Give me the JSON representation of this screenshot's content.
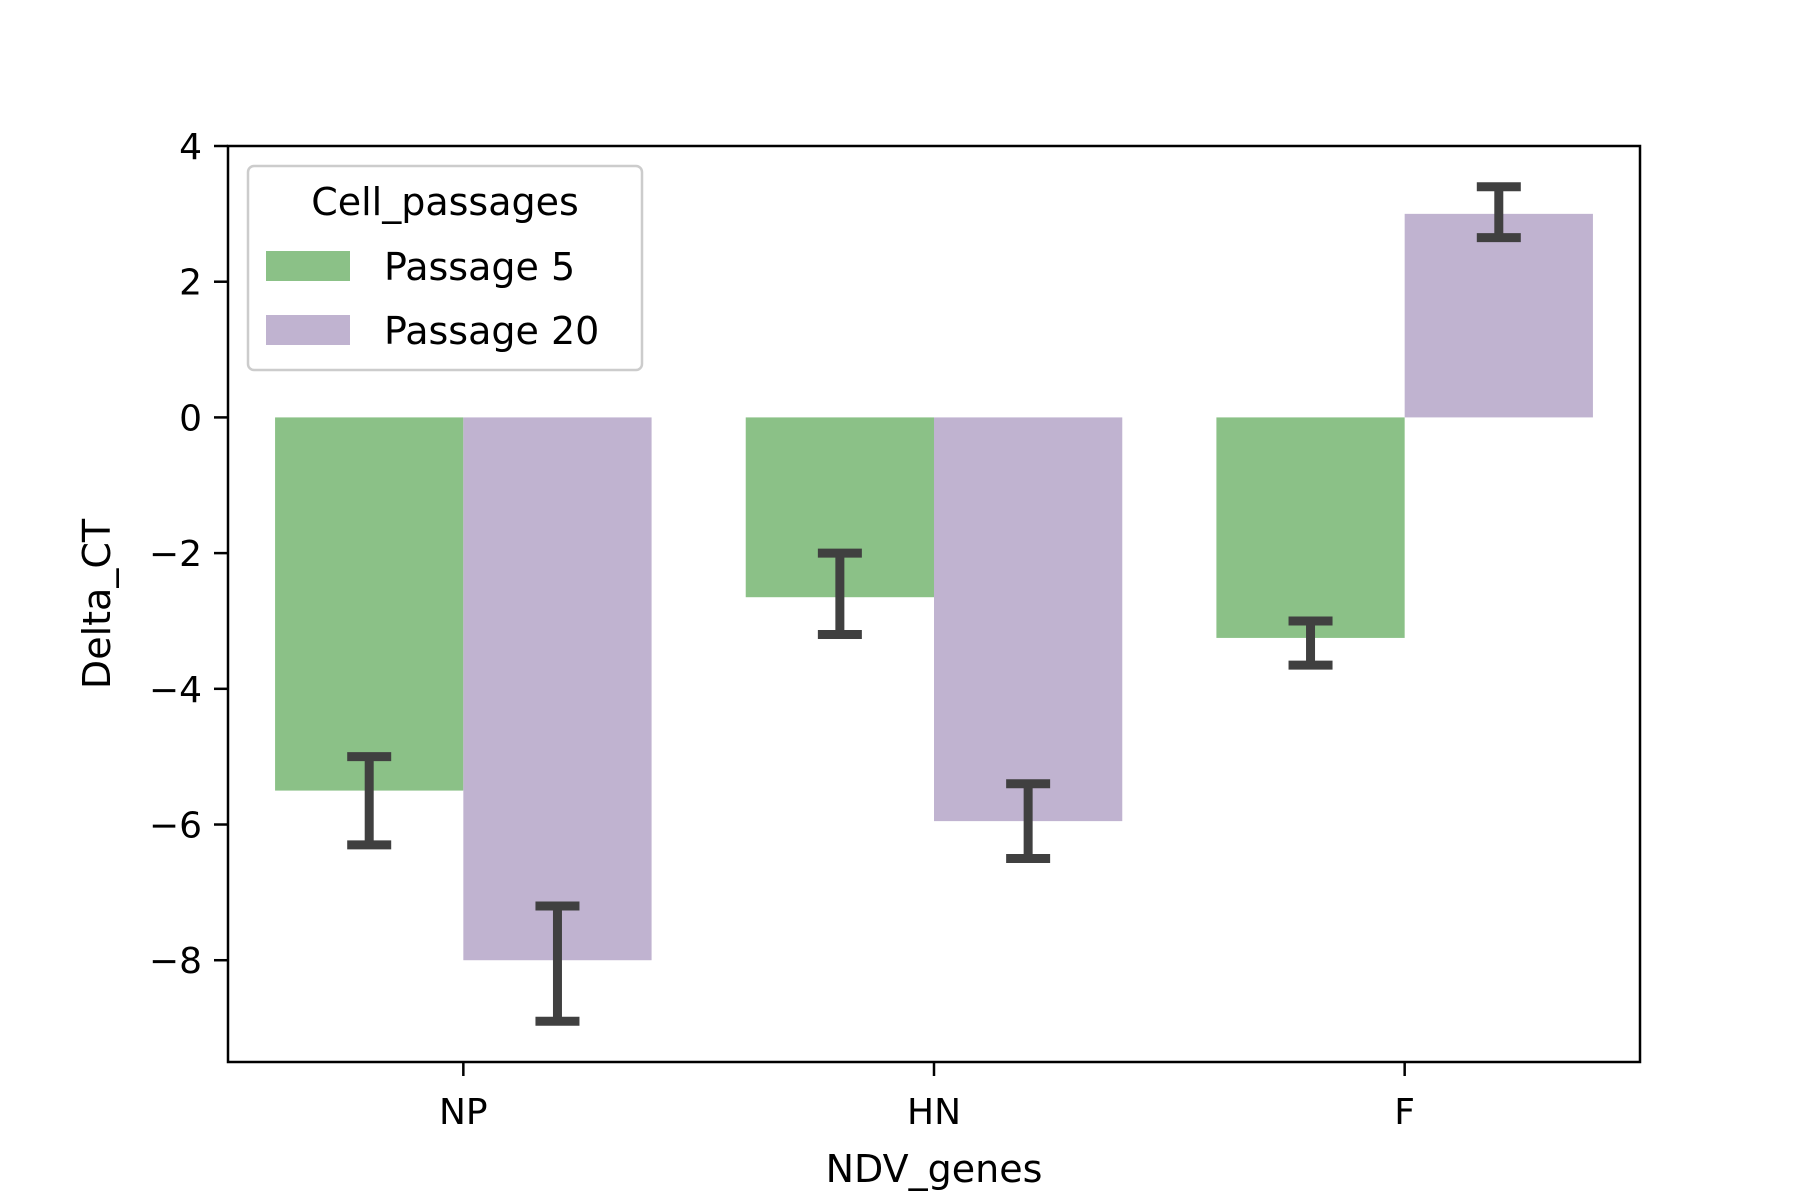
{
  "chart_data": {
    "type": "bar",
    "categories": [
      "NP",
      "HN",
      "F"
    ],
    "series": [
      {
        "name": "Passage 5",
        "color": "#8bc187",
        "values": [
          -5.5,
          -2.65,
          -3.25
        ],
        "err_low": [
          -6.3,
          -3.2,
          -3.65
        ],
        "err_high": [
          -5.0,
          -2.0,
          -3.0
        ]
      },
      {
        "name": "Passage 20",
        "color": "#c0b3d0",
        "values": [
          -8.0,
          -5.95,
          3.0
        ],
        "err_low": [
          -8.9,
          -6.5,
          2.65
        ],
        "err_high": [
          -7.2,
          -5.4,
          3.4
        ]
      }
    ],
    "xlabel": "NDV_genes",
    "ylabel": "Delta_CT",
    "ylim": [
      -9.5,
      4
    ],
    "yticks": [
      4,
      2,
      0,
      -2,
      -4,
      -6,
      -8
    ],
    "ytick_labels": [
      "4",
      "2",
      "0",
      "−2",
      "−4",
      "−6",
      "−8"
    ],
    "grid": false,
    "legend": {
      "title": "Cell_passages",
      "position": "top-left"
    },
    "error_bar_color": "#404040"
  }
}
